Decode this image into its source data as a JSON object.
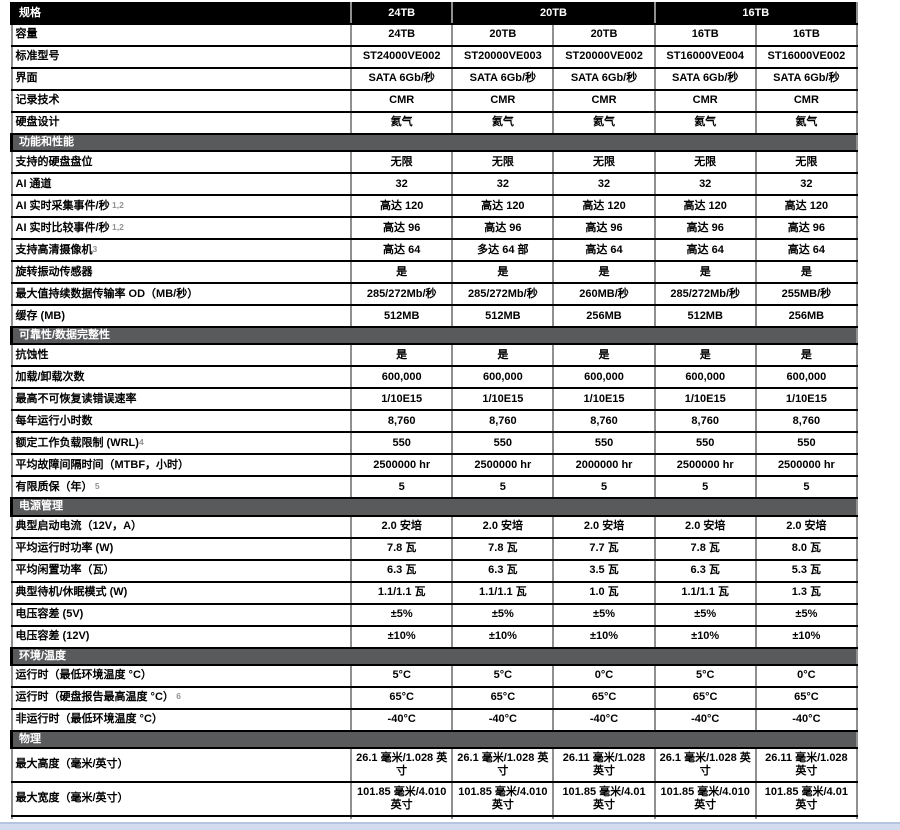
{
  "colors": {
    "header_bg": "#000000",
    "header_text": "#ffffff",
    "section_bg": "#595a5c",
    "section_text": "#ffffff",
    "grid_horizontal": "#000000",
    "grid_vertical": "#8f8f8f",
    "footnote_gray": "#8f9194",
    "footer_bar": "#d3dcee"
  },
  "table": {
    "header": {
      "label": "规格",
      "groups": [
        {
          "label": "24TB",
          "span": 1
        },
        {
          "label": "20TB",
          "span": 2
        },
        {
          "label": "16TB",
          "span": 2
        }
      ]
    },
    "sections": [
      {
        "title": "",
        "rows": [
          {
            "label": "容量",
            "sup": "",
            "values": [
              "24TB",
              "20TB",
              "20TB",
              "16TB",
              "16TB"
            ]
          },
          {
            "label": "标准型号",
            "sup": "",
            "values": [
              "ST24000VE002",
              "ST20000VE003",
              "ST20000VE002",
              "ST16000VE004",
              "ST16000VE002"
            ]
          },
          {
            "label": "界面",
            "sup": "",
            "values": [
              "SATA 6Gb/秒",
              "SATA 6Gb/秒",
              "SATA 6Gb/秒",
              "SATA 6Gb/秒",
              "SATA 6Gb/秒"
            ]
          },
          {
            "label": "记录技术",
            "sup": "",
            "values": [
              "CMR",
              "CMR",
              "CMR",
              "CMR",
              "CMR"
            ]
          },
          {
            "label": "硬盘设计",
            "sup": "",
            "values": [
              "氦气",
              "氦气",
              "氦气",
              "氦气",
              "氦气"
            ]
          }
        ]
      },
      {
        "title": "功能和性能",
        "rows": [
          {
            "label": "支持的硬盘盘位",
            "sup": "",
            "values": [
              "无限",
              "无限",
              "无限",
              "无限",
              "无限"
            ]
          },
          {
            "label": "AI 通道",
            "sup": "",
            "values": [
              "32",
              "32",
              "32",
              "32",
              "32"
            ]
          },
          {
            "label": "AI 实时采集事件/秒",
            "sup": " 1,2",
            "values": [
              "高达 120",
              "高达 120",
              "高达 120",
              "高达 120",
              "高达 120"
            ]
          },
          {
            "label": "AI 实时比较事件/秒",
            "sup": " 1,2",
            "values": [
              "高达 96",
              "高达 96",
              "高达 96",
              "高达 96",
              "高达 96"
            ]
          },
          {
            "label": "支持高清摄像机",
            "sup": "3",
            "values": [
              "高达 64",
              "多达 64 部",
              "高达 64",
              "高达 64",
              "高达 64"
            ]
          },
          {
            "label": "旋转振动传感器",
            "sup": "",
            "values": [
              "是",
              "是",
              "是",
              "是",
              "是"
            ]
          },
          {
            "label": "最大值持续数据传输率 OD（MB/秒）",
            "sup": "",
            "values": [
              "285/272Mb/秒",
              "285/272Mb/秒",
              "260MB/秒",
              "285/272Mb/秒",
              "255MB/秒"
            ]
          },
          {
            "label": "缓存 (MB)",
            "sup": "",
            "values": [
              "512MB",
              "512MB",
              "256MB",
              "512MB",
              "256MB"
            ]
          }
        ]
      },
      {
        "title": "可靠性/数据完整性",
        "rows": [
          {
            "label": "抗蚀性",
            "sup": "",
            "values": [
              "是",
              "是",
              "是",
              "是",
              "是"
            ]
          },
          {
            "label": "加载/卸载次数",
            "sup": "",
            "values": [
              "600,000",
              "600,000",
              "600,000",
              "600,000",
              "600,000"
            ]
          },
          {
            "label": "最高不可恢复读错误速率",
            "sup": "",
            "values": [
              "1/10E15",
              "1/10E15",
              "1/10E15",
              "1/10E15",
              "1/10E15"
            ]
          },
          {
            "label": "每年运行小时数",
            "sup": "",
            "values": [
              "8,760",
              "8,760",
              "8,760",
              "8,760",
              "8,760"
            ]
          },
          {
            "label": "额定工作负载限制 (WRL)",
            "sup": "4",
            "values": [
              "550",
              "550",
              "550",
              "550",
              "550"
            ]
          },
          {
            "label": "平均故障间隔时间（MTBF，小时）",
            "sup": "",
            "values": [
              "2500000 hr",
              "2500000 hr",
              "2000000 hr",
              "2500000 hr",
              "2500000 hr"
            ]
          },
          {
            "label": "有限质保（年）",
            "sup": " 5",
            "values": [
              "5",
              "5",
              "5",
              "5",
              "5"
            ]
          }
        ]
      },
      {
        "title": "电源管理",
        "rows": [
          {
            "label": "典型启动电流（12V，A）",
            "sup": "",
            "values": [
              "2.0 安培",
              "2.0 安培",
              "2.0 安培",
              "2.0 安培",
              "2.0 安培"
            ]
          },
          {
            "label": "平均运行时功率 (W)",
            "sup": "",
            "values": [
              "7.8 瓦",
              "7.8 瓦",
              "7.7 瓦",
              "7.8 瓦",
              "8.0 瓦"
            ]
          },
          {
            "label": "平均闲置功率（瓦）",
            "sup": "",
            "values": [
              "6.3 瓦",
              "6.3 瓦",
              "3.5 瓦",
              "6.3 瓦",
              "5.3 瓦"
            ]
          },
          {
            "label": "典型待机/休眠模式 (W)",
            "sup": "",
            "values": [
              "1.1/1.1 瓦",
              "1.1/1.1 瓦",
              "1.0 瓦",
              "1.1/1.1 瓦",
              "1.3 瓦"
            ]
          },
          {
            "label": "电压容差 (5V)",
            "sup": "",
            "values": [
              "±5%",
              "±5%",
              "±5%",
              "±5%",
              "±5%"
            ]
          },
          {
            "label": "电压容差 (12V)",
            "sup": "",
            "values": [
              "±10%",
              "±10%",
              "±10%",
              "±10%",
              "±10%"
            ]
          }
        ]
      },
      {
        "title": "环境/温度",
        "rows": [
          {
            "label": "运行时（最低环境温度 °C）",
            "sup": "",
            "values": [
              "5°C",
              "5°C",
              "0°C",
              "5°C",
              "0°C"
            ]
          },
          {
            "label": "运行时（硬盘报告最高温度 °C）",
            "sup": " 6",
            "values": [
              "65°C",
              "65°C",
              "65°C",
              "65°C",
              "65°C"
            ]
          },
          {
            "label": "非运行时（最低环境温度 °C）",
            "sup": "",
            "values": [
              "-40°C",
              "-40°C",
              "-40°C",
              "-40°C",
              "-40°C"
            ]
          }
        ]
      },
      {
        "title": "物理",
        "tall": true,
        "rows": [
          {
            "label": "最大高度（毫米/英寸）",
            "sup": "",
            "values": [
              "26.1 毫米/1.028 英寸",
              "26.1 毫米/1.028 英寸",
              "26.11 毫米/1.028 英寸",
              "26.1 毫米/1.028 英寸",
              "26.11 毫米/1.028 英寸"
            ]
          },
          {
            "label": "最大宽度（毫米/英寸）",
            "sup": "",
            "values": [
              "101.85 毫米/4.010 英寸",
              "101.85 毫米/4.010 英寸",
              "101.85 毫米/4.01 英寸",
              "101.85 毫米/4.010 英寸",
              "101.85 毫米/4.01 英寸"
            ]
          }
        ]
      }
    ]
  }
}
